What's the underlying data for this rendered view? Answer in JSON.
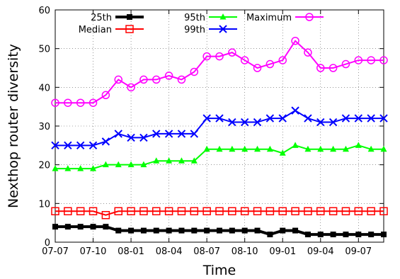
{
  "chart_data": {
    "type": "line",
    "xlabel": "Time",
    "ylabel": "Nexthop router diversity",
    "ylim": [
      0,
      60
    ],
    "yticks": [
      0,
      10,
      20,
      30,
      40,
      50,
      60
    ],
    "xlim": [
      0,
      26
    ],
    "xticks": [
      {
        "pos": 0,
        "label": "07-07"
      },
      {
        "pos": 3,
        "label": "07-10"
      },
      {
        "pos": 6,
        "label": "08-01"
      },
      {
        "pos": 9,
        "label": "08-04"
      },
      {
        "pos": 12,
        "label": "08-07"
      },
      {
        "pos": 15,
        "label": "08-10"
      },
      {
        "pos": 18,
        "label": "09-01"
      },
      {
        "pos": 21,
        "label": "09-04"
      },
      {
        "pos": 24,
        "label": "09-07"
      }
    ],
    "x": [
      0,
      1,
      2,
      3,
      4,
      5,
      6,
      7,
      8,
      9,
      10,
      11,
      12,
      13,
      14,
      15,
      16,
      17,
      18,
      19,
      20,
      21,
      22,
      23,
      24,
      25,
      26
    ],
    "grid": true,
    "legend": "top",
    "series": [
      {
        "name": "25th",
        "color": "#000000",
        "marker": "square-filled",
        "lineWidth": 4,
        "values": [
          4,
          4,
          4,
          4,
          4,
          3,
          3,
          3,
          3,
          3,
          3,
          3,
          3,
          3,
          3,
          3,
          3,
          2,
          3,
          3,
          2,
          2,
          2,
          2,
          2,
          2,
          2
        ]
      },
      {
        "name": "Median",
        "color": "#ff0000",
        "marker": "square-open",
        "lineWidth": 2,
        "values": [
          8,
          8,
          8,
          8,
          7,
          8,
          8,
          8,
          8,
          8,
          8,
          8,
          8,
          8,
          8,
          8,
          8,
          8,
          8,
          8,
          8,
          8,
          8,
          8,
          8,
          8,
          8
        ]
      },
      {
        "name": "95th",
        "color": "#00ff00",
        "marker": "triangle",
        "lineWidth": 2,
        "values": [
          19,
          19,
          19,
          19,
          20,
          20,
          20,
          20,
          21,
          21,
          21,
          21,
          24,
          24,
          24,
          24,
          24,
          24,
          23,
          25,
          24,
          24,
          24,
          24,
          25,
          24,
          24
        ]
      },
      {
        "name": "99th",
        "color": "#0000ff",
        "marker": "x",
        "lineWidth": 2,
        "values": [
          25,
          25,
          25,
          25,
          26,
          28,
          27,
          27,
          28,
          28,
          28,
          28,
          32,
          32,
          31,
          31,
          31,
          32,
          32,
          34,
          32,
          31,
          31,
          32,
          32,
          32,
          32
        ]
      },
      {
        "name": "Maximum",
        "color": "#ff00ff",
        "marker": "circle-open",
        "lineWidth": 2,
        "values": [
          36,
          36,
          36,
          36,
          38,
          42,
          40,
          42,
          42,
          43,
          42,
          44,
          48,
          48,
          49,
          47,
          45,
          46,
          47,
          52,
          49,
          45,
          45,
          46,
          47,
          47,
          47
        ]
      }
    ]
  }
}
